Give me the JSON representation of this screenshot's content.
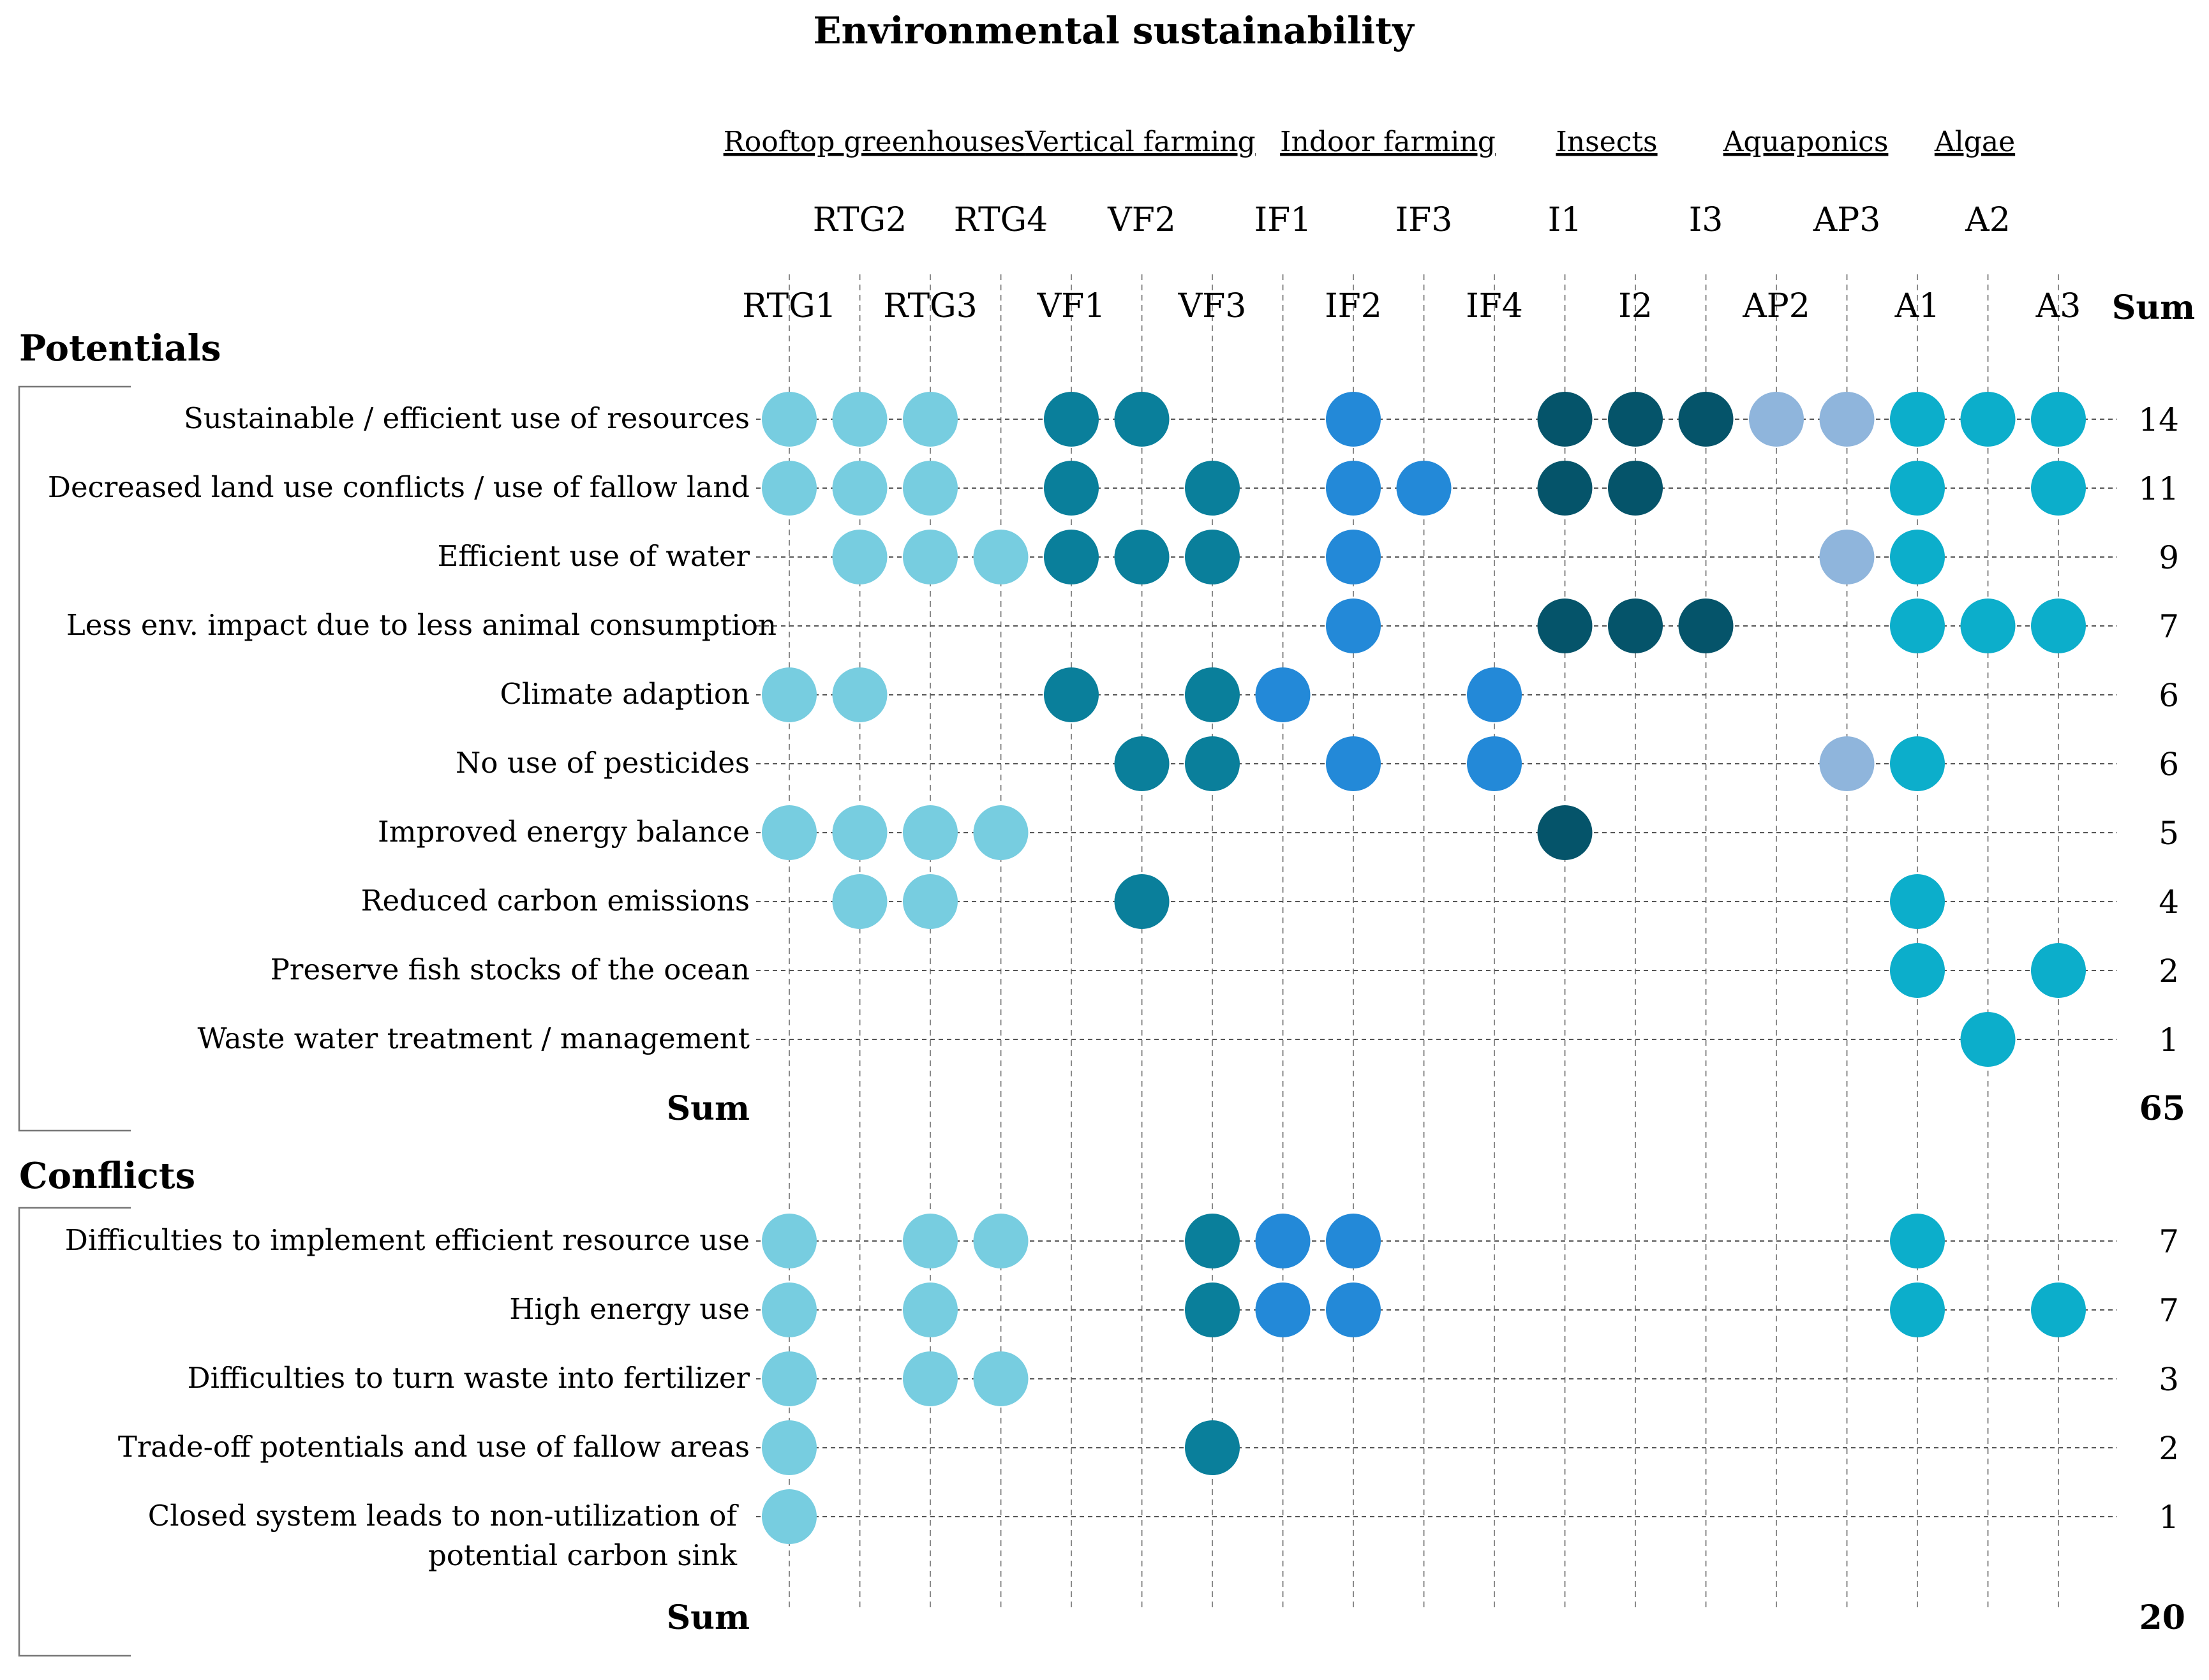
{
  "chart_data": {
    "type": "dot-matrix",
    "title": "Environmental sustainability",
    "groups": [
      {
        "name": "Rooftop greenhouses",
        "columns": [
          "RTG1",
          "RTG2",
          "RTG3",
          "RTG4"
        ]
      },
      {
        "name": "Vertical farming",
        "columns": [
          "VF1",
          "VF2",
          "VF3"
        ]
      },
      {
        "name": "Indoor farming",
        "columns": [
          "IF1",
          "IF2",
          "IF3",
          "IF4"
        ]
      },
      {
        "name": "Insects",
        "columns": [
          "I1",
          "I2",
          "I3"
        ]
      },
      {
        "name": "Aquaponics",
        "columns": [
          "AP2",
          "AP3"
        ]
      },
      {
        "name": "Algae",
        "columns": [
          "A1",
          "A2",
          "A3"
        ]
      }
    ],
    "columns": [
      "RTG1",
      "RTG2",
      "RTG3",
      "RTG4",
      "VF1",
      "VF2",
      "VF3",
      "IF1",
      "IF2",
      "IF3",
      "IF4",
      "I1",
      "I2",
      "I3",
      "AP2",
      "AP3",
      "A1",
      "A2",
      "A3"
    ],
    "sum_header": "Sum",
    "group_colors": {
      "Rooftop greenhouses": "#77cde0",
      "Vertical farming": "#0a7f9b",
      "Indoor farming": "#2389d8",
      "Insects": "#05546a",
      "Aquaponics": "#8fb5dc",
      "Algae": "#0caecb"
    },
    "sections": [
      {
        "name": "Potentials",
        "sum_label": "Sum",
        "total": 65,
        "rows": [
          {
            "label": "Sustainable / efficient use of resources",
            "sum": 14,
            "marked": [
              "RTG1",
              "RTG2",
              "RTG3",
              "VF1",
              "VF2",
              "IF2",
              "I1",
              "I2",
              "I3",
              "AP2",
              "AP3",
              "A1",
              "A2",
              "A3"
            ]
          },
          {
            "label": "Decreased land use conflicts / use of fallow land",
            "sum": 11,
            "marked": [
              "RTG1",
              "RTG2",
              "RTG3",
              "VF1",
              "VF3",
              "IF2",
              "IF3",
              "I1",
              "I2",
              "A1",
              "A3"
            ]
          },
          {
            "label": "Efficient use of water",
            "sum": 9,
            "marked": [
              "RTG2",
              "RTG3",
              "RTG4",
              "VF1",
              "VF2",
              "VF3",
              "IF2",
              "AP3",
              "A1"
            ]
          },
          {
            "label": "Less env. impact due to less animal consumption",
            "sum": 7,
            "marked": [
              "IF2",
              "I1",
              "I2",
              "I3",
              "A1",
              "A2",
              "A3"
            ]
          },
          {
            "label": "Climate adaption",
            "sum": 6,
            "marked": [
              "RTG1",
              "RTG2",
              "VF1",
              "VF3",
              "IF1",
              "IF4"
            ]
          },
          {
            "label": "No use of pesticides",
            "sum": 6,
            "marked": [
              "VF2",
              "VF3",
              "IF2",
              "IF4",
              "AP3",
              "A1"
            ]
          },
          {
            "label": "Improved energy balance",
            "sum": 5,
            "marked": [
              "RTG1",
              "RTG2",
              "RTG3",
              "RTG4",
              "I1"
            ]
          },
          {
            "label": "Reduced carbon emissions",
            "sum": 4,
            "marked": [
              "RTG2",
              "RTG3",
              "VF2",
              "A1"
            ]
          },
          {
            "label": "Preserve fish stocks of the ocean",
            "sum": 2,
            "marked": [
              "A1",
              "A3"
            ]
          },
          {
            "label": "Waste water treatment / management",
            "sum": 1,
            "marked": [
              "A2"
            ]
          }
        ]
      },
      {
        "name": "Conflicts",
        "sum_label": "Sum",
        "total": 20,
        "rows": [
          {
            "label": "Difficulties to implement efficient resource use",
            "sum": 7,
            "marked": [
              "RTG1",
              "RTG3",
              "RTG4",
              "VF3",
              "IF1",
              "IF2",
              "A1"
            ]
          },
          {
            "label": "High energy use",
            "sum": 7,
            "marked": [
              "RTG1",
              "RTG3",
              "VF3",
              "IF1",
              "IF2",
              "A1",
              "A3"
            ]
          },
          {
            "label": "Difficulties to turn waste into fertilizer",
            "sum": 3,
            "marked": [
              "RTG1",
              "RTG3",
              "RTG4"
            ]
          },
          {
            "label": "Trade-off potentials and use of fallow areas",
            "sum": 2,
            "marked": [
              "RTG1",
              "VF3"
            ]
          },
          {
            "label": [
              "Closed system leads to non-utilization of",
              "potential carbon sink"
            ],
            "sum": 1,
            "marked": [
              "RTG1"
            ]
          }
        ]
      }
    ]
  }
}
